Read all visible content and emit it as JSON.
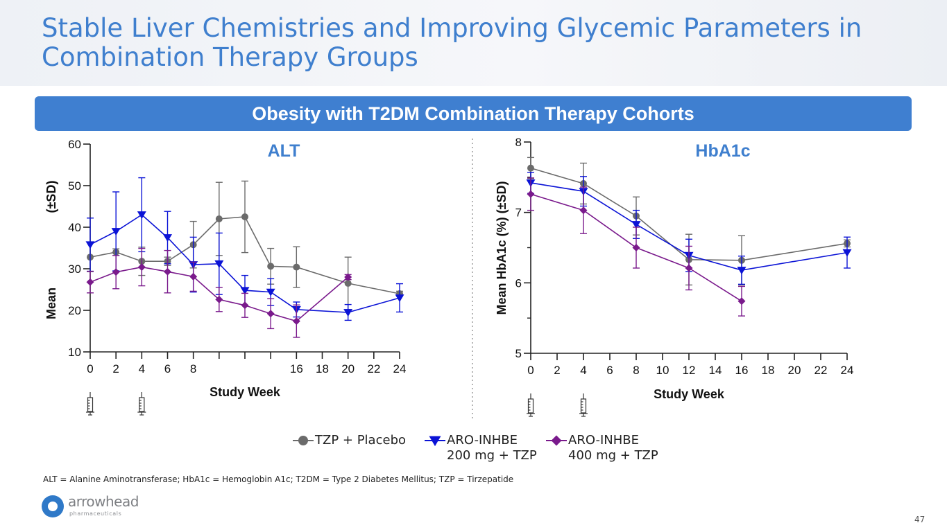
{
  "slide": {
    "title": "Stable Liver Chemistries and Improving Glycemic Parameters in Combination Therapy Groups",
    "banner": "Obesity with T2DM Combination Therapy Cohorts",
    "footnote": "ALT = Alanine Aminotransferase; HbA1c = Hemoglobin A1c; T2DM = Type 2 Diabetes Mellitus; TZP = Tirzepatide",
    "page_number": "47",
    "logo_text": "arrowhead",
    "logo_subtext": "pharmaceuticals"
  },
  "legend": [
    {
      "name": "TZP + Placebo",
      "lines": [
        "TZP + Placebo"
      ],
      "color": "#6b6b6b",
      "marker": "circle"
    },
    {
      "name": "ARO-INHBE 200 mg + TZP",
      "lines": [
        "ARO-INHBE",
        "200 mg + TZP"
      ],
      "color": "#0b13d6",
      "marker": "triangle-down"
    },
    {
      "name": "ARO-INHBE 400 mg + TZP",
      "lines": [
        "ARO-INHBE",
        "400 mg + TZP"
      ],
      "color": "#7a1a8c",
      "marker": "diamond"
    }
  ],
  "chart_data": [
    {
      "type": "line",
      "title": "ALT",
      "xlabel": "Study Week",
      "ylabel_lines": [
        "Mean",
        "(±SD)"
      ],
      "xlim": [
        0,
        24
      ],
      "ylim": [
        10,
        60
      ],
      "xticks": [
        0,
        2,
        4,
        6,
        8,
        10,
        12,
        14,
        16,
        18,
        20,
        22,
        24
      ],
      "xtick_labels": [
        "0",
        "2",
        "4",
        "6",
        "8",
        "",
        "",
        "",
        "16",
        "18",
        "20",
        "22",
        "24"
      ],
      "yticks": [
        10,
        20,
        30,
        40,
        50,
        60
      ],
      "ytick_labels": [
        "10",
        "20",
        "30",
        "40",
        "50",
        "60"
      ],
      "dosing_weeks": [
        0,
        4
      ],
      "series": [
        {
          "name": "TZP + Placebo",
          "color": "#6b6b6b",
          "marker": "circle",
          "x": [
            0,
            2,
            4,
            6,
            8,
            10,
            12,
            14,
            16,
            20,
            24
          ],
          "y": [
            32.8,
            34.0,
            31.8,
            31.8,
            35.8,
            42.0,
            42.5,
            30.6,
            30.4,
            26.5,
            24.0
          ],
          "sd": [
            3.5,
            0.8,
            3.4,
            1.0,
            5.6,
            8.8,
            8.6,
            4.3,
            4.9,
            6.3,
            0.6
          ]
        },
        {
          "name": "ARO-INHBE 200 mg + TZP",
          "color": "#0b13d6",
          "marker": "triangle-down",
          "x": [
            0,
            2,
            4,
            6,
            8,
            10,
            12,
            14,
            16,
            20,
            24
          ],
          "y": [
            35.8,
            39.0,
            43.0,
            37.5,
            31.0,
            31.2,
            24.8,
            24.4,
            20.2,
            19.5,
            23.0
          ],
          "sd": [
            6.4,
            9.5,
            8.9,
            6.3,
            6.6,
            7.4,
            3.6,
            3.2,
            1.8,
            1.9,
            3.4
          ]
        },
        {
          "name": "ARO-INHBE 400 mg + TZP",
          "color": "#7a1a8c",
          "marker": "diamond",
          "x": [
            0,
            2,
            4,
            6,
            8,
            10,
            12,
            14,
            16,
            20
          ],
          "y": [
            26.8,
            29.2,
            30.4,
            29.3,
            28.1,
            22.6,
            21.2,
            19.2,
            17.4,
            28.0
          ],
          "sd": [
            2.6,
            4.0,
            4.5,
            5.1,
            3.5,
            2.9,
            2.9,
            3.6,
            3.9,
            0.6
          ]
        }
      ]
    },
    {
      "type": "line",
      "title": "HbA1c",
      "xlabel": "Study Week",
      "ylabel_lines": [
        "Mean HbA1c (%) (±SD)"
      ],
      "xlim": [
        0,
        24
      ],
      "ylim": [
        5,
        8
      ],
      "xticks": [
        0,
        2,
        4,
        6,
        8,
        10,
        12,
        14,
        16,
        18,
        20,
        22,
        24
      ],
      "xtick_labels": [
        "0",
        "2",
        "4",
        "6",
        "8",
        "10",
        "12",
        "14",
        "16",
        "18",
        "20",
        "22",
        "24"
      ],
      "yticks": [
        5,
        6,
        7,
        8
      ],
      "ytick_labels": [
        "5",
        "6",
        "7",
        "8"
      ],
      "minor_yticks": [
        5.5,
        6.5,
        7.5
      ],
      "dosing_weeks": [
        0,
        4
      ],
      "series": [
        {
          "name": "TZP + Placebo",
          "color": "#6b6b6b",
          "marker": "circle",
          "x": [
            0,
            4,
            8,
            12,
            16,
            24
          ],
          "y": [
            7.63,
            7.41,
            6.95,
            6.33,
            6.32,
            6.56
          ],
          "sd": [
            0.15,
            0.29,
            0.27,
            0.36,
            0.35,
            0.05
          ]
        },
        {
          "name": "ARO-INHBE 200 mg + TZP",
          "color": "#0b13d6",
          "marker": "triangle-down",
          "x": [
            0,
            4,
            8,
            12,
            16,
            24
          ],
          "y": [
            7.42,
            7.3,
            6.83,
            6.39,
            6.18,
            6.43
          ],
          "sd": [
            0.15,
            0.21,
            0.2,
            0.23,
            0.2,
            0.22
          ]
        },
        {
          "name": "ARO-INHBE 400 mg + TZP",
          "color": "#7a1a8c",
          "marker": "diamond",
          "x": [
            0,
            4,
            8,
            12,
            16
          ],
          "y": [
            7.26,
            7.03,
            6.5,
            6.21,
            5.74
          ],
          "sd": [
            0.23,
            0.33,
            0.29,
            0.31,
            0.21
          ]
        }
      ]
    }
  ]
}
